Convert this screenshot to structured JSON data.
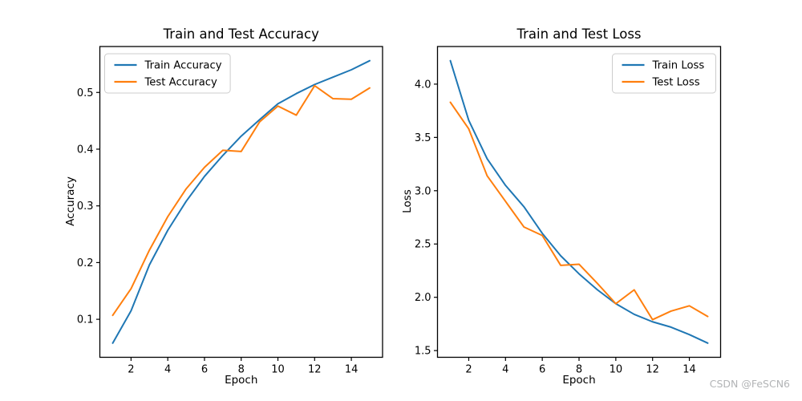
{
  "watermark": "CSDN @FeSCN6",
  "colors": {
    "train": "#1f77b4",
    "test": "#ff7f0e",
    "spine": "#000000",
    "legend_border": "#cccccc",
    "watermark": "#b2b4b6",
    "background": "#ffffff"
  },
  "chart_data": [
    {
      "id": "accuracy",
      "type": "line",
      "title": "Train and Test Accuracy",
      "xlabel": "Epoch",
      "ylabel": "Accuracy",
      "grid": false,
      "x": [
        1,
        2,
        3,
        4,
        5,
        6,
        7,
        8,
        9,
        10,
        11,
        12,
        13,
        14,
        15
      ],
      "series": [
        {
          "name": "Train Accuracy",
          "color_key": "train",
          "values": [
            0.058,
            0.115,
            0.196,
            0.257,
            0.308,
            0.352,
            0.389,
            0.423,
            0.452,
            0.48,
            0.498,
            0.514,
            0.527,
            0.54,
            0.556
          ]
        },
        {
          "name": "Test Accuracy",
          "color_key": "test",
          "values": [
            0.107,
            0.154,
            0.222,
            0.281,
            0.33,
            0.368,
            0.398,
            0.396,
            0.448,
            0.476,
            0.46,
            0.512,
            0.489,
            0.488,
            0.508
          ]
        }
      ],
      "xlim": [
        0.3,
        15.7
      ],
      "ylim": [
        0.033,
        0.581
      ],
      "xticks": [
        2,
        4,
        6,
        8,
        10,
        12,
        14
      ],
      "xtick_labels": [
        "2",
        "4",
        "6",
        "8",
        "10",
        "12",
        "14"
      ],
      "yticks": [
        0.1,
        0.2,
        0.3,
        0.4,
        0.5
      ],
      "ytick_labels": [
        "0.1",
        "0.2",
        "0.3",
        "0.4",
        "0.5"
      ],
      "legend": {
        "position": "upper-left",
        "entries": [
          "Train Accuracy",
          "Test Accuracy"
        ]
      }
    },
    {
      "id": "loss",
      "type": "line",
      "title": "Train and Test Loss",
      "xlabel": "Epoch",
      "ylabel": "Loss",
      "grid": false,
      "x": [
        1,
        2,
        3,
        4,
        5,
        6,
        7,
        8,
        9,
        10,
        11,
        12,
        13,
        14,
        15
      ],
      "series": [
        {
          "name": "Train Loss",
          "color_key": "train",
          "values": [
            4.22,
            3.66,
            3.3,
            3.05,
            2.85,
            2.6,
            2.39,
            2.22,
            2.07,
            1.94,
            1.84,
            1.77,
            1.72,
            1.65,
            1.57
          ]
        },
        {
          "name": "Test Loss",
          "color_key": "test",
          "values": [
            3.83,
            3.58,
            3.14,
            2.9,
            2.66,
            2.58,
            2.3,
            2.31,
            2.13,
            1.94,
            2.07,
            1.79,
            1.87,
            1.92,
            1.82
          ]
        }
      ],
      "xlim": [
        0.3,
        15.7
      ],
      "ylim": [
        1.437,
        4.353
      ],
      "xticks": [
        2,
        4,
        6,
        8,
        10,
        12,
        14
      ],
      "xtick_labels": [
        "2",
        "4",
        "6",
        "8",
        "10",
        "12",
        "14"
      ],
      "yticks": [
        1.5,
        2.0,
        2.5,
        3.0,
        3.5,
        4.0
      ],
      "ytick_labels": [
        "1.5",
        "2.0",
        "2.5",
        "3.0",
        "3.5",
        "4.0"
      ],
      "legend": {
        "position": "upper-right",
        "entries": [
          "Train Loss",
          "Test Loss"
        ]
      }
    }
  ]
}
